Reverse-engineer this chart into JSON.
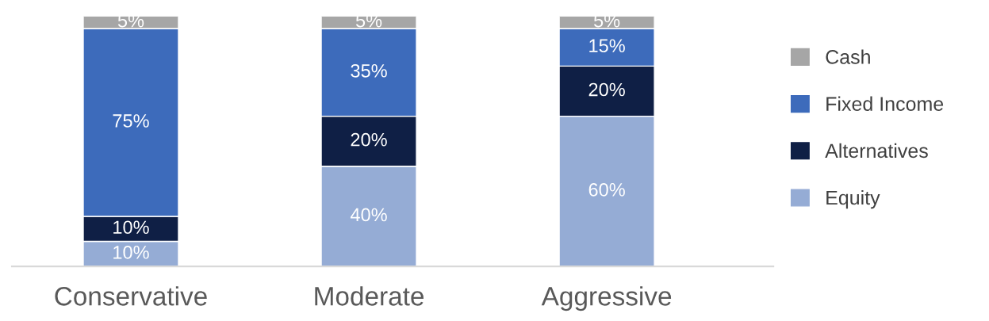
{
  "chart_data": {
    "type": "bar",
    "stacked": true,
    "categories": [
      "Conservative",
      "Moderate",
      "Aggressive"
    ],
    "series": [
      {
        "name": "Equity",
        "color": "#95acd5",
        "values": [
          10,
          40,
          60
        ],
        "value_labels": [
          "10%",
          "40%",
          "60%"
        ]
      },
      {
        "name": "Alternatives",
        "color": "#0f1f45",
        "values": [
          10,
          20,
          20
        ],
        "value_labels": [
          "10%",
          "20%",
          "20%"
        ]
      },
      {
        "name": "Fixed Income",
        "color": "#3d6bbb",
        "values": [
          75,
          35,
          15
        ],
        "value_labels": [
          "75%",
          "35%",
          "15%"
        ]
      },
      {
        "name": "Cash",
        "color": "#a6a6a6",
        "values": [
          5,
          5,
          5
        ],
        "value_labels": [
          "5%",
          "5%",
          "5%"
        ]
      }
    ],
    "ylim": [
      0,
      100
    ],
    "tick_labels": "x",
    "legend": "right"
  }
}
